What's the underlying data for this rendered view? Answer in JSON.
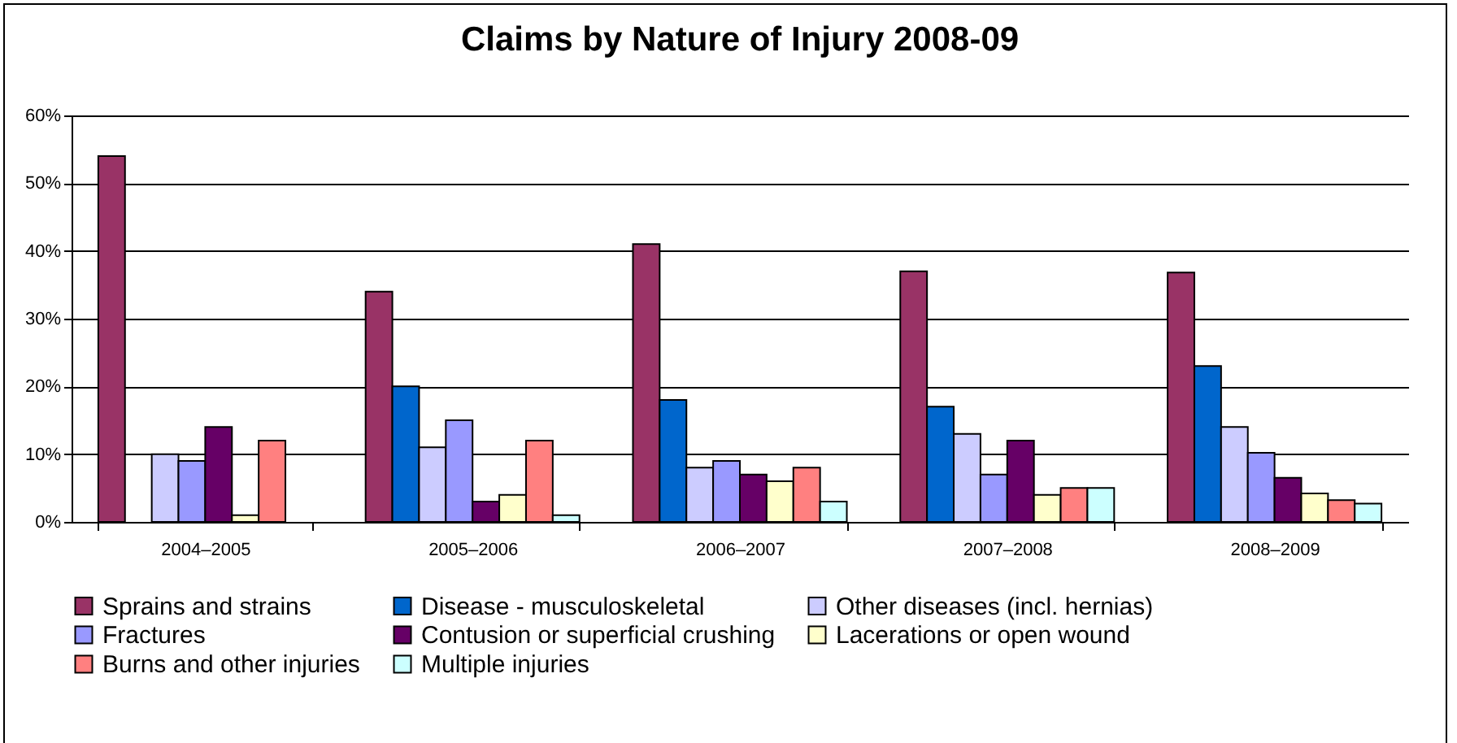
{
  "chart_data": {
    "type": "bar",
    "title": "Claims by Nature of Injury 2008-09",
    "categories": [
      "2004–2005",
      "2005–2006",
      "2006–2007",
      "2007–2008",
      "2008–2009"
    ],
    "series": [
      {
        "name": "Sprains and strains",
        "color": "#993366",
        "values": [
          54,
          34,
          41,
          37,
          36.8
        ]
      },
      {
        "name": "Disease - musculoskeletal",
        "color": "#0066cc",
        "values": [
          null,
          20,
          18,
          17,
          23
        ]
      },
      {
        "name": "Other diseases (incl. hernias)",
        "color": "#ccccff",
        "values": [
          10,
          11,
          8,
          13,
          14
        ]
      },
      {
        "name": "Fractures",
        "color": "#9999ff",
        "values": [
          9,
          15,
          9,
          7,
          10.2
        ]
      },
      {
        "name": "Contusion or superficial crushing",
        "color": "#660066",
        "values": [
          14,
          3,
          7,
          12,
          6.5
        ]
      },
      {
        "name": "Lacerations or open wound",
        "color": "#ffffcc",
        "values": [
          1,
          4,
          6,
          4,
          4.2
        ]
      },
      {
        "name": "Burns and other injuries",
        "color": "#ff8080",
        "values": [
          12,
          12,
          8,
          5,
          3.2
        ]
      },
      {
        "name": "Multiple injuries",
        "color": "#ccffff",
        "values": [
          null,
          1,
          3,
          5,
          2.7
        ]
      }
    ],
    "ylim": [
      0,
      60
    ],
    "yticks": [
      {
        "value": 0,
        "label": "0%"
      },
      {
        "value": 10,
        "label": "10%"
      },
      {
        "value": 20,
        "label": "20%"
      },
      {
        "value": 30,
        "label": "30%"
      },
      {
        "value": 40,
        "label": "40%"
      },
      {
        "value": 50,
        "label": "50%"
      },
      {
        "value": 60,
        "label": "60%"
      }
    ],
    "grid": "y",
    "legend": "bottom"
  }
}
